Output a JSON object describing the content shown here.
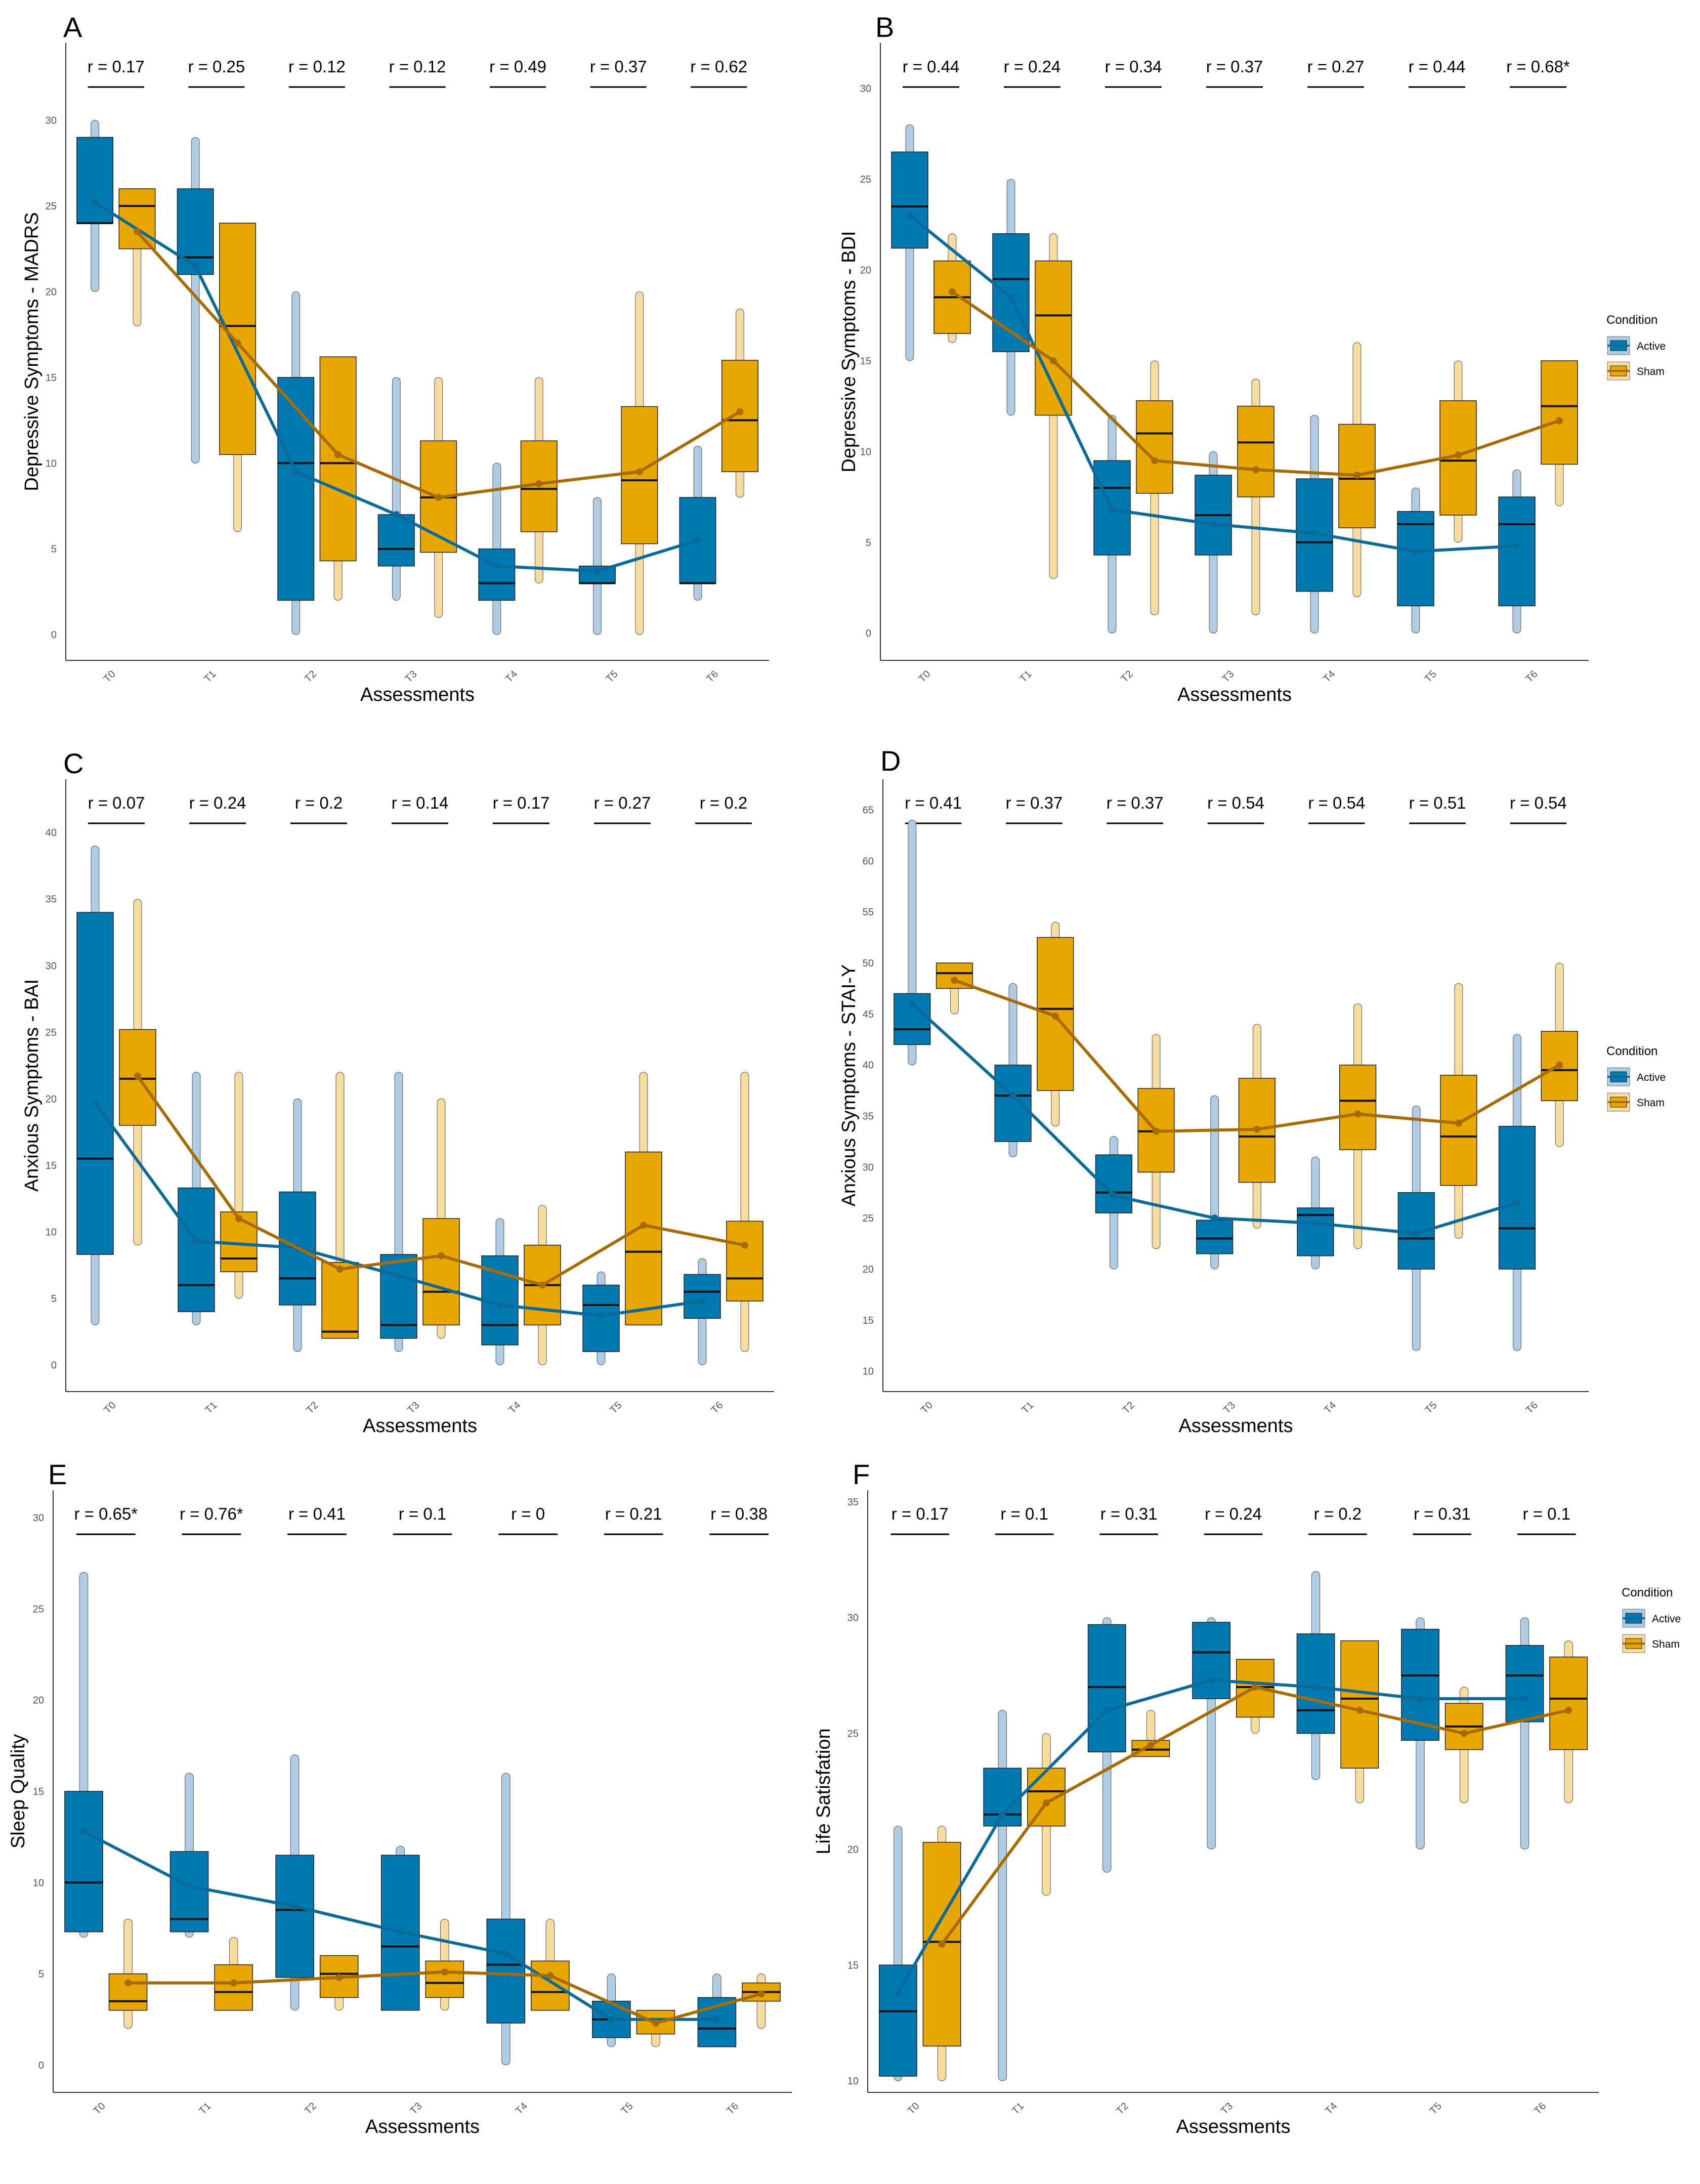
{
  "figure": {
    "panels_count": 6
  },
  "legend": {
    "title": "Condition",
    "entries": [
      "Active",
      "Sham"
    ]
  },
  "colors": {
    "active": "#0079b0",
    "sham": "#e8a600",
    "active_line": "#0a6a9a",
    "sham_line": "#a86b00"
  },
  "chart_data": [
    {
      "panel": "A",
      "type": "box",
      "xlabel": "Assessments",
      "ylabel": "Depressive Symptoms - MADRS",
      "categories": [
        "T0",
        "T1",
        "T2",
        "T3",
        "T4",
        "T5",
        "T6"
      ],
      "ylim": [
        -1.5,
        34.5
      ],
      "yticks": [
        0,
        5,
        10,
        15,
        20,
        25,
        30
      ],
      "r_labels": [
        "r = 0.17",
        "r = 0.25",
        "r = 0.12",
        "r = 0.12",
        "r = 0.49",
        "r = 0.37",
        "r = 0.62"
      ],
      "has_legend": false,
      "series": [
        {
          "name": "Active",
          "boxes": [
            [
              24,
              24,
              29
            ],
            [
              21,
              22,
              26
            ],
            [
              2,
              10,
              15
            ],
            [
              4,
              5,
              7
            ],
            [
              2,
              3,
              5
            ],
            [
              3,
              3,
              4
            ],
            [
              3,
              3,
              8
            ]
          ],
          "ranges": [
            [
              20,
              30
            ],
            [
              10,
              29
            ],
            [
              0,
              20
            ],
            [
              2,
              15
            ],
            [
              0,
              10
            ],
            [
              0,
              8
            ],
            [
              2,
              11
            ]
          ],
          "means": [
            25.2,
            21.5,
            9.5,
            7.0,
            4.0,
            3.7,
            5.5
          ]
        },
        {
          "name": "Sham",
          "boxes": [
            [
              22.5,
              25,
              26
            ],
            [
              10.5,
              18,
              24
            ],
            [
              4.3,
              10,
              16.2
            ],
            [
              4.8,
              8,
              11.3
            ],
            [
              6,
              8.5,
              11.3
            ],
            [
              5.3,
              9,
              13.3
            ],
            [
              9.5,
              12.5,
              16
            ]
          ],
          "ranges": [
            [
              18,
              26
            ],
            [
              6,
              24
            ],
            [
              2,
              16.2
            ],
            [
              1,
              15
            ],
            [
              3,
              15
            ],
            [
              0,
              20
            ],
            [
              8,
              19
            ]
          ],
          "means": [
            23.5,
            17.0,
            10.5,
            8.0,
            8.8,
            9.5,
            13.0
          ]
        }
      ]
    },
    {
      "panel": "B",
      "type": "box",
      "xlabel": "Assessments",
      "ylabel": "Depressive Symptoms - BDI",
      "categories": [
        "T0",
        "T1",
        "T2",
        "T3",
        "T4",
        "T5",
        "T6"
      ],
      "ylim": [
        -1.5,
        32.5
      ],
      "yticks": [
        0,
        5,
        10,
        15,
        20,
        25,
        30
      ],
      "r_labels": [
        "r = 0.44",
        "r = 0.24",
        "r = 0.34",
        "r = 0.37",
        "r = 0.27",
        "r = 0.44",
        "r = 0.68*"
      ],
      "has_legend": true,
      "series": [
        {
          "name": "Active",
          "boxes": [
            [
              21.2,
              23.5,
              26.5
            ],
            [
              15.5,
              19.5,
              22
            ],
            [
              4.3,
              8,
              9.5
            ],
            [
              4.3,
              6.5,
              8.7
            ],
            [
              2.3,
              5,
              8.5
            ],
            [
              1.5,
              6,
              6.7
            ],
            [
              1.5,
              6,
              7.5
            ]
          ],
          "ranges": [
            [
              15,
              28
            ],
            [
              12,
              25
            ],
            [
              0,
              12
            ],
            [
              0,
              10
            ],
            [
              0,
              12
            ],
            [
              0,
              8
            ],
            [
              0,
              9
            ]
          ],
          "means": [
            23.0,
            18.5,
            6.8,
            6.0,
            5.5,
            4.5,
            4.8
          ]
        },
        {
          "name": "Sham",
          "boxes": [
            [
              16.5,
              18.5,
              20.5
            ],
            [
              12,
              17.5,
              20.5
            ],
            [
              7.7,
              11,
              12.8
            ],
            [
              7.5,
              10.5,
              12.5
            ],
            [
              5.8,
              8.5,
              11.5
            ],
            [
              6.5,
              9.5,
              12.8
            ],
            [
              9.3,
              12.5,
              15
            ]
          ],
          "ranges": [
            [
              16,
              22
            ],
            [
              3,
              22
            ],
            [
              1,
              15
            ],
            [
              1,
              14
            ],
            [
              2,
              16
            ],
            [
              5,
              15
            ],
            [
              7,
              15
            ]
          ],
          "means": [
            18.8,
            15.0,
            9.5,
            9.0,
            8.7,
            9.8,
            11.7
          ]
        }
      ]
    },
    {
      "panel": "C",
      "type": "box",
      "xlabel": "Assessments",
      "ylabel": "Anxious Symptoms - BAI",
      "categories": [
        "T0",
        "T1",
        "T2",
        "T3",
        "T4",
        "T5",
        "T6"
      ],
      "ylim": [
        -2,
        44
      ],
      "yticks": [
        0,
        5,
        10,
        15,
        20,
        25,
        30,
        35,
        40
      ],
      "r_labels": [
        "r = 0.07",
        "r = 0.24",
        "r = 0.2",
        "r = 0.14",
        "r = 0.17",
        "r = 0.27",
        "r = 0.2"
      ],
      "has_legend": false,
      "series": [
        {
          "name": "Active",
          "boxes": [
            [
              8.3,
              15.5,
              34
            ],
            [
              4,
              6,
              13.3
            ],
            [
              4.5,
              6.5,
              13
            ],
            [
              2,
              3,
              8.3
            ],
            [
              1.5,
              3,
              8.2
            ],
            [
              1,
              4.5,
              6
            ],
            [
              3.5,
              5.5,
              6.8
            ]
          ],
          "ranges": [
            [
              3,
              39
            ],
            [
              3,
              22
            ],
            [
              1,
              20
            ],
            [
              1,
              22
            ],
            [
              0,
              11
            ],
            [
              0,
              7
            ],
            [
              0,
              8
            ]
          ],
          "means": [
            19.7,
            9.3,
            8.8,
            6.7,
            4.5,
            3.7,
            4.8
          ]
        },
        {
          "name": "Sham",
          "boxes": [
            [
              18,
              21.5,
              25.2
            ],
            [
              7,
              8,
              11.5
            ],
            [
              2,
              2.5,
              7.7
            ],
            [
              3,
              5.5,
              11
            ],
            [
              3,
              6,
              9
            ],
            [
              3,
              8.5,
              16
            ],
            [
              4.8,
              6.5,
              10.8
            ]
          ],
          "ranges": [
            [
              9,
              35
            ],
            [
              5,
              22
            ],
            [
              2,
              22
            ],
            [
              2,
              20
            ],
            [
              0,
              12
            ],
            [
              3,
              22
            ],
            [
              1,
              22
            ]
          ],
          "means": [
            21.7,
            11.0,
            7.2,
            8.2,
            6.0,
            10.5,
            9.0
          ]
        }
      ]
    },
    {
      "panel": "D",
      "type": "box",
      "xlabel": "Assessments",
      "ylabel": "Anxious Symptoms - STAI-Y",
      "categories": [
        "T0",
        "T1",
        "T2",
        "T3",
        "T4",
        "T5",
        "T6"
      ],
      "ylim": [
        8,
        68
      ],
      "yticks": [
        10,
        15,
        20,
        25,
        30,
        35,
        40,
        45,
        50,
        55,
        60,
        65
      ],
      "r_labels": [
        "r = 0.41",
        "r = 0.37",
        "r = 0.37",
        "r = 0.54",
        "r = 0.54",
        "r = 0.51",
        "r = 0.54"
      ],
      "has_legend": true,
      "series": [
        {
          "name": "Active",
          "boxes": [
            [
              42,
              43.5,
              47
            ],
            [
              32.5,
              37,
              40
            ],
            [
              25.5,
              27.5,
              31.2
            ],
            [
              21.5,
              23,
              24.8
            ],
            [
              21.3,
              25.3,
              26
            ],
            [
              20,
              23,
              27.5
            ],
            [
              20,
              24,
              34
            ]
          ],
          "ranges": [
            [
              40,
              64
            ],
            [
              31,
              48
            ],
            [
              20,
              33
            ],
            [
              20,
              37
            ],
            [
              20,
              31
            ],
            [
              12,
              36
            ],
            [
              12,
              43
            ]
          ],
          "means": [
            46.0,
            37.0,
            27.2,
            25.0,
            24.5,
            23.5,
            26.5
          ]
        },
        {
          "name": "Sham",
          "boxes": [
            [
              47.5,
              49,
              50
            ],
            [
              37.5,
              45.5,
              52.5
            ],
            [
              29.5,
              33.5,
              37.7
            ],
            [
              28.5,
              33,
              38.7
            ],
            [
              31.7,
              36.5,
              40
            ],
            [
              28.2,
              33,
              39
            ],
            [
              36.5,
              39.5,
              43.3
            ]
          ],
          "ranges": [
            [
              45,
              50
            ],
            [
              34,
              54
            ],
            [
              22,
              43
            ],
            [
              24,
              44
            ],
            [
              22,
              46
            ],
            [
              23,
              48
            ],
            [
              32,
              50
            ]
          ],
          "means": [
            48.3,
            44.8,
            33.5,
            33.7,
            35.2,
            34.3,
            40.0
          ]
        }
      ]
    },
    {
      "panel": "E",
      "type": "box",
      "xlabel": "Assessments",
      "ylabel": "Sleep Quality",
      "categories": [
        "T0",
        "T1",
        "T2",
        "T3",
        "T4",
        "T5",
        "T6"
      ],
      "ylim": [
        -1.5,
        31.5
      ],
      "yticks": [
        0,
        5,
        10,
        15,
        20,
        25,
        30
      ],
      "r_labels": [
        "r = 0.65*",
        "r = 0.76*",
        "r = 0.41",
        "r = 0.1",
        "r = 0",
        "r = 0.21",
        "r = 0.38"
      ],
      "has_legend": false,
      "series": [
        {
          "name": "Active",
          "boxes": [
            [
              7.3,
              10,
              15
            ],
            [
              7.3,
              8,
              11.7
            ],
            [
              4.8,
              8.5,
              11.5
            ],
            [
              3,
              6.5,
              11.5
            ],
            [
              2.3,
              5.5,
              8
            ],
            [
              1.5,
              2.5,
              3.5
            ],
            [
              1,
              2,
              3.7
            ]
          ],
          "ranges": [
            [
              7,
              27
            ],
            [
              7,
              16
            ],
            [
              3,
              17
            ],
            [
              3,
              12
            ],
            [
              0,
              16
            ],
            [
              1,
              5
            ],
            [
              1,
              5
            ]
          ],
          "means": [
            12.8,
            9.8,
            8.7,
            7.3,
            6.1,
            2.5,
            2.5
          ]
        },
        {
          "name": "Sham",
          "boxes": [
            [
              3,
              3.5,
              5
            ],
            [
              3,
              4,
              5.5
            ],
            [
              3.7,
              5,
              6
            ],
            [
              3.7,
              4.5,
              5.7
            ],
            [
              3,
              4,
              5.7
            ],
            [
              1.7,
              2.5,
              3
            ],
            [
              3.5,
              4,
              4.5
            ]
          ],
          "ranges": [
            [
              2,
              8
            ],
            [
              3,
              7
            ],
            [
              3,
              6
            ],
            [
              3,
              8
            ],
            [
              3,
              8
            ],
            [
              1,
              3
            ],
            [
              2,
              5
            ]
          ],
          "means": [
            4.5,
            4.5,
            4.8,
            5.1,
            4.9,
            2.3,
            3.9
          ]
        }
      ]
    },
    {
      "panel": "F",
      "type": "box",
      "xlabel": "Assessments",
      "ylabel": "Life Satisfation",
      "categories": [
        "T0",
        "T1",
        "T2",
        "T3",
        "T4",
        "T5",
        "T6"
      ],
      "ylim": [
        9.5,
        35.5
      ],
      "yticks": [
        10,
        15,
        20,
        25,
        30,
        35
      ],
      "r_labels": [
        "r = 0.17",
        "r = 0.1",
        "r = 0.31",
        "r = 0.24",
        "r = 0.2",
        "r = 0.31",
        "r = 0.1"
      ],
      "has_legend": true,
      "series": [
        {
          "name": "Active",
          "boxes": [
            [
              10.2,
              13,
              15
            ],
            [
              21,
              21.5,
              23.5
            ],
            [
              24.2,
              27,
              29.7
            ],
            [
              26.5,
              28.5,
              29.8
            ],
            [
              25,
              26,
              29.3
            ],
            [
              24.7,
              27.5,
              29.5
            ],
            [
              25.5,
              27.5,
              28.8
            ]
          ],
          "ranges": [
            [
              10,
              21
            ],
            [
              10,
              26
            ],
            [
              19,
              30
            ],
            [
              20,
              30
            ],
            [
              23,
              32
            ],
            [
              20,
              30
            ],
            [
              20,
              30
            ]
          ],
          "means": [
            13.8,
            21.5,
            26.0,
            27.3,
            27.0,
            26.5,
            26.5
          ]
        },
        {
          "name": "Sham",
          "boxes": [
            [
              11.5,
              16,
              20.3
            ],
            [
              21,
              22.5,
              23.5
            ],
            [
              24,
              24.3,
              24.7
            ],
            [
              25.7,
              27,
              28.2
            ],
            [
              23.5,
              26.5,
              29
            ],
            [
              24.3,
              25.3,
              26.3
            ],
            [
              24.3,
              26.5,
              28.3
            ]
          ],
          "ranges": [
            [
              10,
              21
            ],
            [
              18,
              25
            ],
            [
              24,
              26
            ],
            [
              25,
              28
            ],
            [
              22,
              29
            ],
            [
              22,
              27
            ],
            [
              22,
              29
            ]
          ],
          "means": [
            15.9,
            22.0,
            24.5,
            27.0,
            26.0,
            25.0,
            26.0
          ]
        }
      ]
    }
  ]
}
